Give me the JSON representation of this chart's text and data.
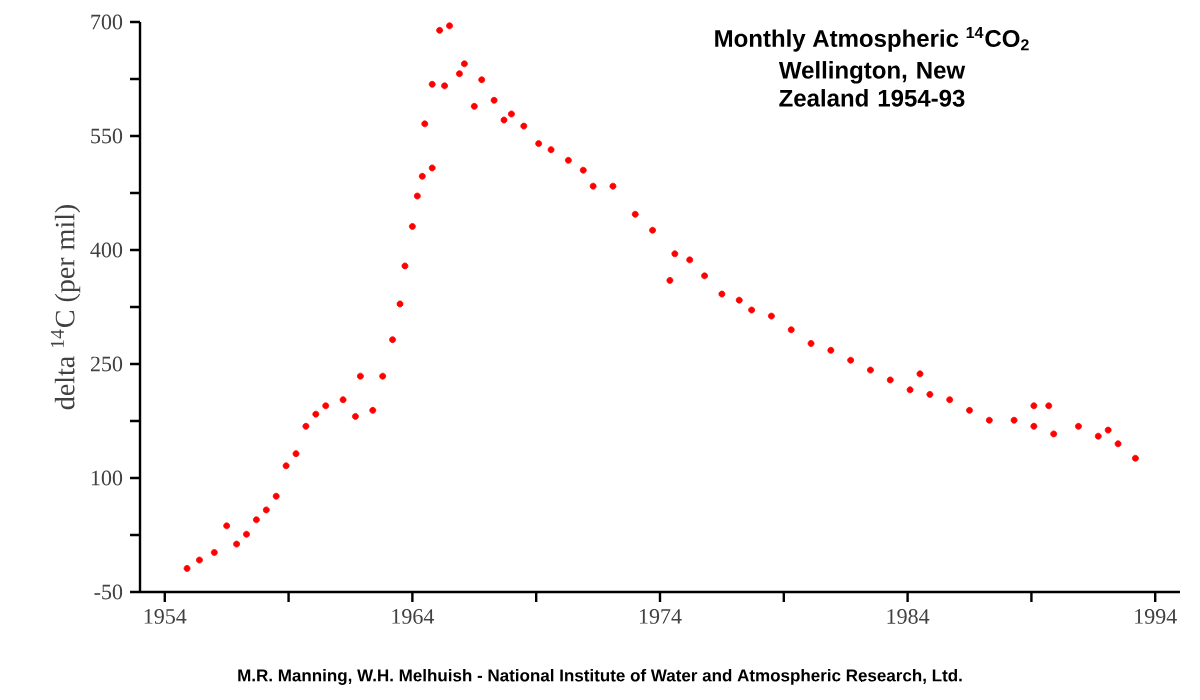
{
  "chart_data": {
    "type": "scatter",
    "title": "Monthly Atmospheric $^{14}$CO$_{2}$",
    "subtitle": "Wellington, New Zealand 1954-93",
    "ylabel": "delta $^{14}$C (per mil)",
    "annotations": [
      "M.R. Manning, W.H. Melhuish - National Institute of Water and Atmospheric Research, Ltd."
    ],
    "marker": "circle",
    "xlim": [
      1953,
      1995
    ],
    "ylim": [
      -50,
      700
    ],
    "xticks": [
      1954,
      {
        "value": 1959,
        "label": null
      },
      1964,
      {
        "value": 1969,
        "label": null
      },
      1974,
      {
        "value": 1979,
        "label": null
      },
      1984,
      {
        "value": 1989,
        "label": null
      },
      1994
    ],
    "yticks": [
      -50,
      {
        "value": 25,
        "label": null
      },
      100,
      {
        "value": 175,
        "label": null
      },
      250,
      {
        "value": 325,
        "label": null
      },
      400,
      {
        "value": 475,
        "label": null
      },
      550,
      {
        "value": 625,
        "label": null
      },
      700
    ],
    "series": [
      {
        "color": "#ff0000",
        "x": [
          1954.9,
          1955.4,
          1956.0,
          1956.5,
          1956.9,
          1957.3,
          1957.7,
          1958.1,
          1958.5,
          1958.9,
          1959.3,
          1959.7,
          1960.1,
          1960.5,
          1961.2,
          1961.7,
          1961.9,
          1962.4,
          1962.8,
          1963.2,
          1963.5,
          1963.7,
          1964.0,
          1964.2,
          1964.4,
          1964.5,
          1964.8,
          1964.8,
          1965.1,
          1965.5,
          1965.3,
          1965.9,
          1966.1,
          1966.5,
          1966.8,
          1967.3,
          1967.7,
          1968.0,
          1968.5,
          1969.1,
          1969.6,
          1970.3,
          1970.9,
          1971.3,
          1972.1,
          1973.0,
          1973.7,
          1974.4,
          1974.6,
          1975.2,
          1975.8,
          1976.5,
          1977.2,
          1977.7,
          1978.5,
          1979.3,
          1980.1,
          1980.9,
          1981.7,
          1982.5,
          1983.3,
          1984.5,
          1984.1,
          1984.9,
          1985.7,
          1986.5,
          1987.3,
          1988.3,
          1989.1,
          1989.7,
          1989.1,
          1989.9,
          1990.9,
          1991.7,
          1992.1,
          1992.5,
          1993.2
        ],
        "values": [
          -19,
          -8,
          2,
          37,
          13,
          26,
          45,
          58,
          76,
          116,
          132,
          168,
          184,
          195,
          203,
          181,
          234,
          189,
          234,
          282,
          329,
          379,
          431,
          471,
          497,
          566,
          508,
          618,
          689,
          695,
          616,
          632,
          645,
          589,
          624,
          597,
          571,
          579,
          563,
          540,
          532,
          518,
          505,
          484,
          484,
          447,
          426,
          360,
          395,
          387,
          366,
          342,
          334,
          321,
          313,
          295,
          277,
          268,
          255,
          242,
          229,
          237,
          216,
          210,
          203,
          189,
          176,
          176,
          195,
          195,
          168,
          158,
          168,
          155,
          163,
          145,
          126
        ]
      }
    ]
  }
}
